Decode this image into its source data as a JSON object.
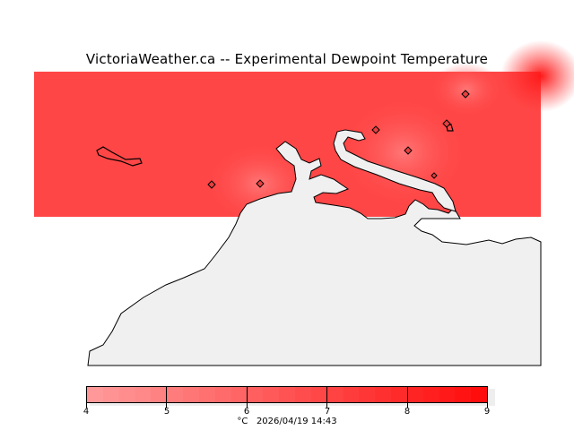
{
  "title": "VictoriaWeather.ca -- Experimental Dewpoint Temperature",
  "colors": {
    "field": "#ff4444",
    "land": "#f0f0f0",
    "bar_low": "#ff9999",
    "bar_high": "#ff0d0d"
  },
  "colorbar": {
    "min": 4,
    "max": 9,
    "ticks": [
      "4",
      "5",
      "6",
      "7",
      "8",
      "9"
    ],
    "units": "°C",
    "timestamp": "2026/04/19 14:43"
  }
}
